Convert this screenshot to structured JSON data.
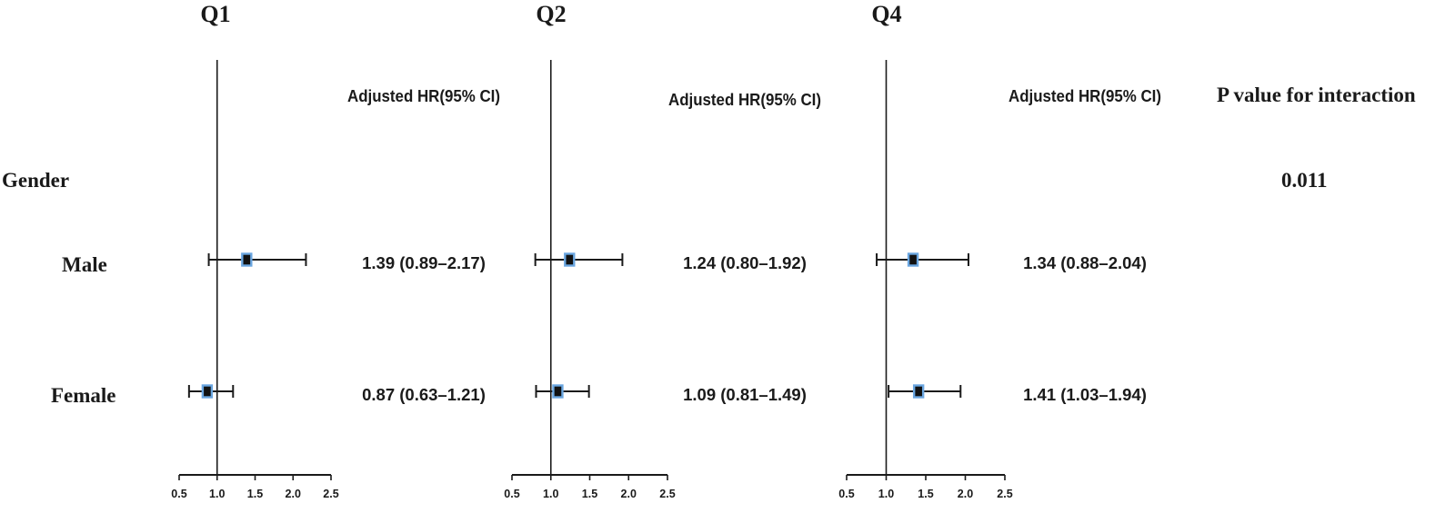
{
  "colors": {
    "ink": "#1a1a1a",
    "marker_fill": "#111111",
    "marker_edge": "#6aa6e0"
  },
  "group_label": "Gender",
  "rows": [
    "Male",
    "Female"
  ],
  "hr_header": "Adjusted HR(95% CI)",
  "pvalue_header": "P value for interaction",
  "pvalue": "0.011",
  "chart_data": [
    {
      "type": "forest",
      "title": "Q1",
      "reference_line": 1.0,
      "xlim": [
        0.5,
        2.5
      ],
      "xticks": [
        "0.5",
        "1.0",
        "1.5",
        "2.0",
        "2.5"
      ],
      "series": [
        {
          "name": "Male",
          "hr": 1.39,
          "lower": 0.89,
          "upper": 2.17,
          "label": "1.39 (0.89–2.17)"
        },
        {
          "name": "Female",
          "hr": 0.87,
          "lower": 0.63,
          "upper": 1.21,
          "label": "0.87 (0.63–1.21)"
        }
      ]
    },
    {
      "type": "forest",
      "title": "Q2",
      "reference_line": 1.0,
      "xlim": [
        0.5,
        2.5
      ],
      "xticks": [
        "0.5",
        "1.0",
        "1.5",
        "2.0",
        "2.5"
      ],
      "series": [
        {
          "name": "Male",
          "hr": 1.24,
          "lower": 0.8,
          "upper": 1.92,
          "label": "1.24 (0.80–1.92)"
        },
        {
          "name": "Female",
          "hr": 1.09,
          "lower": 0.81,
          "upper": 1.49,
          "label": "1.09 (0.81–1.49)"
        }
      ]
    },
    {
      "type": "forest",
      "title": "Q4",
      "reference_line": 1.0,
      "xlim": [
        0.5,
        2.5
      ],
      "xticks": [
        "0.5",
        "1.0",
        "1.5",
        "2.0",
        "2.5"
      ],
      "series": [
        {
          "name": "Male",
          "hr": 1.34,
          "lower": 0.88,
          "upper": 2.04,
          "label": "1.34 (0.88–2.04)"
        },
        {
          "name": "Female",
          "hr": 1.41,
          "lower": 1.03,
          "upper": 1.94,
          "label": "1.41 (1.03–1.94)"
        }
      ]
    }
  ]
}
